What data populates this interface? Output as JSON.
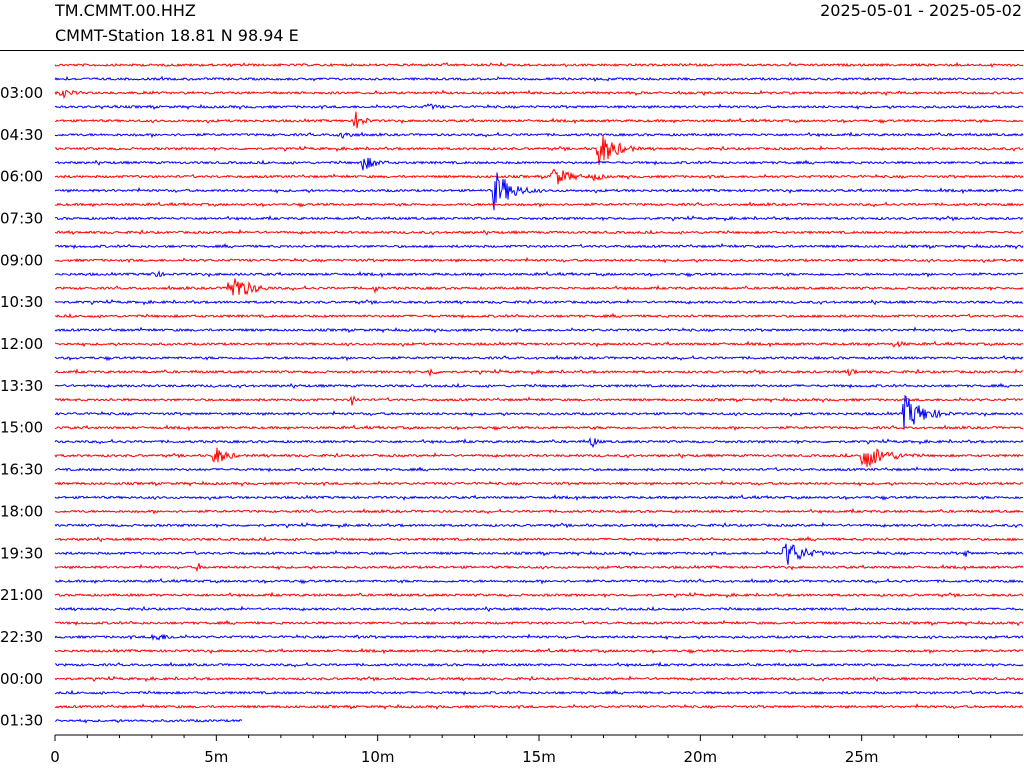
{
  "header": {
    "channel": "TM.CMMT.00.HHZ",
    "station": "CMMT-Station  18.81 N 98.94 E",
    "date_range": "2025-05-01 - 2025-05-02"
  },
  "chart_data": {
    "type": "line",
    "title": "",
    "xlabel": "",
    "ylabel": "",
    "x_ticks": [
      {
        "value": 0,
        "label": "0"
      },
      {
        "value": 5,
        "label": "5m"
      },
      {
        "value": 10,
        "label": "10m"
      },
      {
        "value": 15,
        "label": "15m"
      },
      {
        "value": 20,
        "label": "20m"
      },
      {
        "value": 25,
        "label": "25m"
      }
    ],
    "x_minor_step": 1,
    "xlim": [
      0,
      30
    ],
    "row_duration_minutes": 30,
    "start_time": "02:00",
    "row_count": 48,
    "last_row_end_minute": 5.8,
    "y_labels": [
      {
        "row": 2,
        "label": "03:00"
      },
      {
        "row": 5,
        "label": "04:30"
      },
      {
        "row": 8,
        "label": "06:00"
      },
      {
        "row": 11,
        "label": "07:30"
      },
      {
        "row": 14,
        "label": "09:00"
      },
      {
        "row": 17,
        "label": "10:30"
      },
      {
        "row": 20,
        "label": "12:00"
      },
      {
        "row": 23,
        "label": "13:30"
      },
      {
        "row": 26,
        "label": "15:00"
      },
      {
        "row": 29,
        "label": "16:30"
      },
      {
        "row": 32,
        "label": "18:00"
      },
      {
        "row": 35,
        "label": "19:30"
      },
      {
        "row": 38,
        "label": "21:00"
      },
      {
        "row": 41,
        "label": "22:30"
      },
      {
        "row": 44,
        "label": "00:00"
      },
      {
        "row": 47,
        "label": "01:30"
      }
    ],
    "trace_colors": [
      "#ff0000",
      "#0000ff"
    ],
    "events": [
      {
        "row": 2,
        "minute": 0.2,
        "amp": 6,
        "duration": 1.0
      },
      {
        "row": 3,
        "minute": 11.5,
        "amp": 4,
        "duration": 1.5
      },
      {
        "row": 4,
        "minute": 9.3,
        "amp": 11,
        "duration": 0.8
      },
      {
        "row": 5,
        "minute": 8.8,
        "amp": 6,
        "duration": 1.2
      },
      {
        "row": 6,
        "minute": 16.8,
        "amp": 22,
        "duration": 1.5
      },
      {
        "row": 7,
        "minute": 9.5,
        "amp": 9,
        "duration": 1.4
      },
      {
        "row": 8,
        "minute": 15.4,
        "amp": 12,
        "duration": 1.6
      },
      {
        "row": 8,
        "minute": 16.7,
        "amp": 5,
        "duration": 1.0
      },
      {
        "row": 9,
        "minute": 13.6,
        "amp": 22,
        "duration": 1.6
      },
      {
        "row": 15,
        "minute": 3.0,
        "amp": 5,
        "duration": 1.0
      },
      {
        "row": 16,
        "minute": 5.4,
        "amp": 18,
        "duration": 1.6
      },
      {
        "row": 16,
        "minute": 9.9,
        "amp": 5,
        "duration": 0.4
      },
      {
        "row": 20,
        "minute": 26.0,
        "amp": 4,
        "duration": 1.2
      },
      {
        "row": 22,
        "minute": 11.6,
        "amp": 6,
        "duration": 0.6
      },
      {
        "row": 22,
        "minute": 24.6,
        "amp": 5,
        "duration": 0.8
      },
      {
        "row": 24,
        "minute": 9.2,
        "amp": 6,
        "duration": 0.5
      },
      {
        "row": 25,
        "minute": 26.3,
        "amp": 20,
        "duration": 1.8
      },
      {
        "row": 27,
        "minute": 16.6,
        "amp": 8,
        "duration": 0.6
      },
      {
        "row": 28,
        "minute": 4.9,
        "amp": 12,
        "duration": 1.2
      },
      {
        "row": 28,
        "minute": 25.0,
        "amp": 15,
        "duration": 2.2
      },
      {
        "row": 35,
        "minute": 22.6,
        "amp": 15,
        "duration": 1.8
      },
      {
        "row": 35,
        "minute": 28.2,
        "amp": 5,
        "duration": 0.4
      },
      {
        "row": 36,
        "minute": 4.4,
        "amp": 6,
        "duration": 0.5
      },
      {
        "row": 41,
        "minute": 3.0,
        "amp": 5,
        "duration": 2.0
      },
      {
        "row": 41,
        "minute": 9.3,
        "amp": 4,
        "duration": 0.4
      }
    ]
  }
}
